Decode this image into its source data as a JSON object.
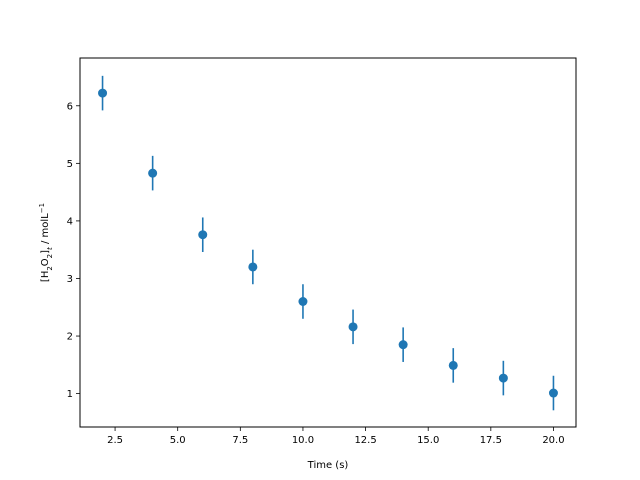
{
  "chart_data": {
    "type": "scatter",
    "title": "",
    "xlabel": "Time (s)",
    "ylabel": "[H2O2]t / molL-1",
    "xlim": [
      1.1,
      20.9
    ],
    "ylim": [
      0.42,
      6.83
    ],
    "x_ticks": [
      "2.5",
      "5.0",
      "7.5",
      "10.0",
      "12.5",
      "15.0",
      "17.5",
      "20.0"
    ],
    "x_tick_values": [
      2.5,
      5.0,
      7.5,
      10.0,
      12.5,
      15.0,
      17.5,
      20.0
    ],
    "y_ticks": [
      "1",
      "2",
      "3",
      "4",
      "5",
      "6"
    ],
    "y_tick_values": [
      1,
      2,
      3,
      4,
      5,
      6
    ],
    "grid": false,
    "marker_color": "#1f77b4",
    "points": [
      {
        "x": 2,
        "y": 6.22,
        "yerr": 0.3
      },
      {
        "x": 4,
        "y": 4.83,
        "yerr": 0.3
      },
      {
        "x": 6,
        "y": 3.76,
        "yerr": 0.3
      },
      {
        "x": 8,
        "y": 3.2,
        "yerr": 0.3
      },
      {
        "x": 10,
        "y": 2.6,
        "yerr": 0.3
      },
      {
        "x": 12,
        "y": 2.16,
        "yerr": 0.3
      },
      {
        "x": 14,
        "y": 1.85,
        "yerr": 0.3
      },
      {
        "x": 16,
        "y": 1.49,
        "yerr": 0.3
      },
      {
        "x": 18,
        "y": 1.27,
        "yerr": 0.3
      },
      {
        "x": 20,
        "y": 1.01,
        "yerr": 0.3
      }
    ]
  }
}
